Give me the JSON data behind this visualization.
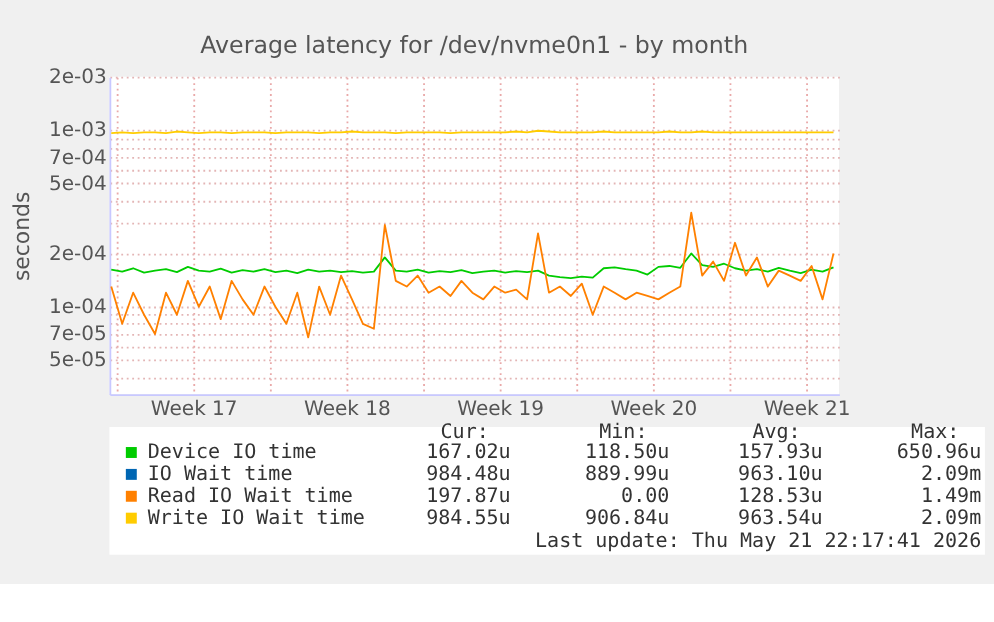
{
  "chart_data": {
    "type": "line",
    "title": "Average latency for /dev/nvme0n1 - by month",
    "ylabel": "seconds",
    "x": [
      "2026-04-19T18:00",
      "2026-04-20T06:00",
      "2026-04-20T18:00",
      "2026-04-21T06:00",
      "2026-04-21T18:00",
      "2026-04-22T06:00",
      "2026-04-22T18:00",
      "2026-04-23T06:00",
      "2026-04-23T18:00",
      "2026-04-24T06:00",
      "2026-04-24T18:00",
      "2026-04-25T06:00",
      "2026-04-25T18:00",
      "2026-04-26T06:00",
      "2026-04-26T18:00",
      "2026-04-27T06:00",
      "2026-04-27T18:00",
      "2026-04-28T06:00",
      "2026-04-28T18:00",
      "2026-04-29T06:00",
      "2026-04-29T18:00",
      "2026-04-30T06:00",
      "2026-04-30T18:00",
      "2026-05-01T06:00",
      "2026-05-01T18:00",
      "2026-05-02T06:00",
      "2026-05-02T18:00",
      "2026-05-03T06:00",
      "2026-05-03T18:00",
      "2026-05-04T06:00",
      "2026-05-04T18:00",
      "2026-05-05T06:00",
      "2026-05-05T18:00",
      "2026-05-06T06:00",
      "2026-05-06T18:00",
      "2026-05-07T06:00",
      "2026-05-07T18:00",
      "2026-05-08T06:00",
      "2026-05-08T18:00",
      "2026-05-09T06:00",
      "2026-05-09T18:00",
      "2026-05-10T06:00",
      "2026-05-10T18:00",
      "2026-05-11T06:00",
      "2026-05-11T18:00",
      "2026-05-12T06:00",
      "2026-05-12T18:00",
      "2026-05-13T06:00",
      "2026-05-13T18:00",
      "2026-05-14T06:00",
      "2026-05-14T18:00",
      "2026-05-15T06:00",
      "2026-05-15T18:00",
      "2026-05-16T06:00",
      "2026-05-16T18:00",
      "2026-05-17T06:00",
      "2026-05-17T18:00",
      "2026-05-18T06:00",
      "2026-05-18T18:00",
      "2026-05-19T06:00",
      "2026-05-19T18:00",
      "2026-05-20T06:00",
      "2026-05-20T18:00",
      "2026-05-21T06:00",
      "2026-05-21T18:00",
      "2026-05-22T06:00",
      "2026-05-22T18:00"
    ],
    "series": [
      {
        "name": "Device IO time",
        "color": "#00cc00",
        "values": [
          0.000162,
          0.000158,
          0.000165,
          0.000156,
          0.00016,
          0.000163,
          0.000157,
          0.000168,
          0.00016,
          0.000158,
          0.000164,
          0.000156,
          0.000161,
          0.000158,
          0.000163,
          0.000157,
          0.00016,
          0.000155,
          0.000162,
          0.000158,
          0.00016,
          0.000157,
          0.000159,
          0.000156,
          0.000158,
          0.00019,
          0.00016,
          0.000158,
          0.000162,
          0.000156,
          0.000159,
          0.000157,
          0.000161,
          0.000155,
          0.000158,
          0.00016,
          0.000156,
          0.000159,
          0.000157,
          0.00016,
          0.00015,
          0.000147,
          0.000145,
          0.000148,
          0.000146,
          0.000165,
          0.000167,
          0.000163,
          0.00016,
          0.000152,
          0.000168,
          0.00017,
          0.000166,
          0.0002,
          0.000172,
          0.000168,
          0.000175,
          0.000165,
          0.00016,
          0.000163,
          0.000158,
          0.000166,
          0.00016,
          0.000155,
          0.000162,
          0.000158,
          0.000167
        ]
      },
      {
        "name": "IO Wait time",
        "color": "#0066b3",
        "values": [
          null,
          null,
          null,
          null,
          null,
          null,
          null,
          null,
          null,
          null,
          null,
          null,
          null,
          null,
          null,
          null,
          null,
          null,
          null,
          null,
          null,
          null,
          null,
          null,
          null,
          null,
          null,
          null,
          null,
          null,
          null,
          null,
          null,
          null,
          null,
          null,
          null,
          null,
          null,
          null,
          null,
          null,
          null,
          null,
          null,
          null,
          null,
          null,
          null,
          null,
          null,
          null,
          null,
          null,
          null,
          null,
          null,
          null,
          null,
          null,
          null,
          null,
          null,
          null,
          null,
          null,
          null
        ]
      },
      {
        "name": "Read IO Wait time",
        "color": "#ff8000",
        "values": [
          0.00013,
          8e-05,
          0.00012,
          9e-05,
          7e-05,
          0.00012,
          9e-05,
          0.00014,
          0.0001,
          0.00013,
          8.5e-05,
          0.00014,
          0.00011,
          9e-05,
          0.00013,
          0.0001,
          8e-05,
          0.00012,
          6.7e-05,
          0.00013,
          9e-05,
          0.00015,
          0.00011,
          8e-05,
          7.5e-05,
          0.00029,
          0.00014,
          0.00013,
          0.00015,
          0.00012,
          0.00013,
          0.000115,
          0.00014,
          0.00012,
          0.00011,
          0.00013,
          0.00012,
          0.000125,
          0.00011,
          0.00026,
          0.00012,
          0.00013,
          0.000115,
          0.000135,
          9e-05,
          0.00013,
          0.00012,
          0.00011,
          0.00012,
          0.000115,
          0.00011,
          0.00012,
          0.00013,
          0.00034,
          0.00015,
          0.00018,
          0.00014,
          0.00023,
          0.00015,
          0.00019,
          0.00013,
          0.00016,
          0.00015,
          0.00014,
          0.00017,
          0.00011,
          0.0002
        ]
      },
      {
        "name": "Write IO Wait time",
        "color": "#ffcc00",
        "values": [
          0.00096,
          0.00097,
          0.00096,
          0.00097,
          0.00097,
          0.00096,
          0.00098,
          0.00097,
          0.00096,
          0.00097,
          0.00097,
          0.00096,
          0.00097,
          0.00097,
          0.00097,
          0.00096,
          0.00097,
          0.00097,
          0.00097,
          0.00096,
          0.00097,
          0.00097,
          0.00098,
          0.00097,
          0.00097,
          0.00097,
          0.00096,
          0.00097,
          0.00097,
          0.00097,
          0.00097,
          0.00096,
          0.00097,
          0.00097,
          0.00097,
          0.00097,
          0.00097,
          0.00098,
          0.00097,
          0.00099,
          0.00098,
          0.00097,
          0.00097,
          0.00097,
          0.00097,
          0.00098,
          0.00097,
          0.00097,
          0.00097,
          0.00097,
          0.00097,
          0.00098,
          0.00097,
          0.00097,
          0.00098,
          0.00097,
          0.00097,
          0.00097,
          0.00097,
          0.00097,
          0.00097,
          0.00097,
          0.00097,
          0.00097,
          0.00097,
          0.00097,
          0.00097
        ]
      }
    ],
    "xlim": [
      "2026-04-19T16:00",
      "2026-05-23T00:00"
    ],
    "xticks": [
      {
        "value": "2026-04-20T00:00",
        "label": null
      },
      {
        "value": "2026-04-23T12:00",
        "label": "Week 17"
      },
      {
        "value": "2026-04-27T00:00",
        "label": null
      },
      {
        "value": "2026-04-30T12:00",
        "label": "Week 18"
      },
      {
        "value": "2026-05-04T00:00",
        "label": null
      },
      {
        "value": "2026-05-07T12:00",
        "label": "Week 19"
      },
      {
        "value": "2026-05-11T00:00",
        "label": null
      },
      {
        "value": "2026-05-14T12:00",
        "label": "Week 20"
      },
      {
        "value": "2026-05-18T00:00",
        "label": null
      },
      {
        "value": "2026-05-21T12:00",
        "label": "Week 21"
      }
    ],
    "ylim": [
      3.2e-05,
      0.002
    ],
    "yticks": [
      {
        "value": 4e-05,
        "label": null
      },
      {
        "value": 5e-05,
        "label": "5e-05"
      },
      {
        "value": 6e-05,
        "label": null
      },
      {
        "value": 7e-05,
        "label": "7e-05"
      },
      {
        "value": 8e-05,
        "label": null
      },
      {
        "value": 9e-05,
        "label": null
      },
      {
        "value": 0.0001,
        "label": "1e-04"
      },
      {
        "value": 0.0002,
        "label": "2e-04"
      },
      {
        "value": 0.0003,
        "label": null
      },
      {
        "value": 0.0004,
        "label": null
      },
      {
        "value": 0.0005,
        "label": "5e-04"
      },
      {
        "value": 0.0006,
        "label": null
      },
      {
        "value": 0.0007,
        "label": "7e-04"
      },
      {
        "value": 0.0008,
        "label": null
      },
      {
        "value": 0.0009,
        "label": null
      },
      {
        "value": 0.001,
        "label": "1e-03"
      },
      {
        "value": 0.002,
        "label": "2e-03"
      }
    ],
    "log": "y",
    "grid": true,
    "legend": "bottom",
    "annotations": [
      "Cur:",
      "Min:",
      "Avg:",
      "Max:",
      "167.02u",
      "118.50u",
      "157.93u",
      "650.96u",
      "984.48u",
      "889.99u",
      "963.10u",
      "2.09m",
      "197.87u",
      "0.00",
      "128.53u",
      "1.49m",
      "984.55u",
      "906.84u",
      "963.54u",
      "2.09m",
      "Last update: Thu May 21 22:17:41 2026"
    ]
  }
}
